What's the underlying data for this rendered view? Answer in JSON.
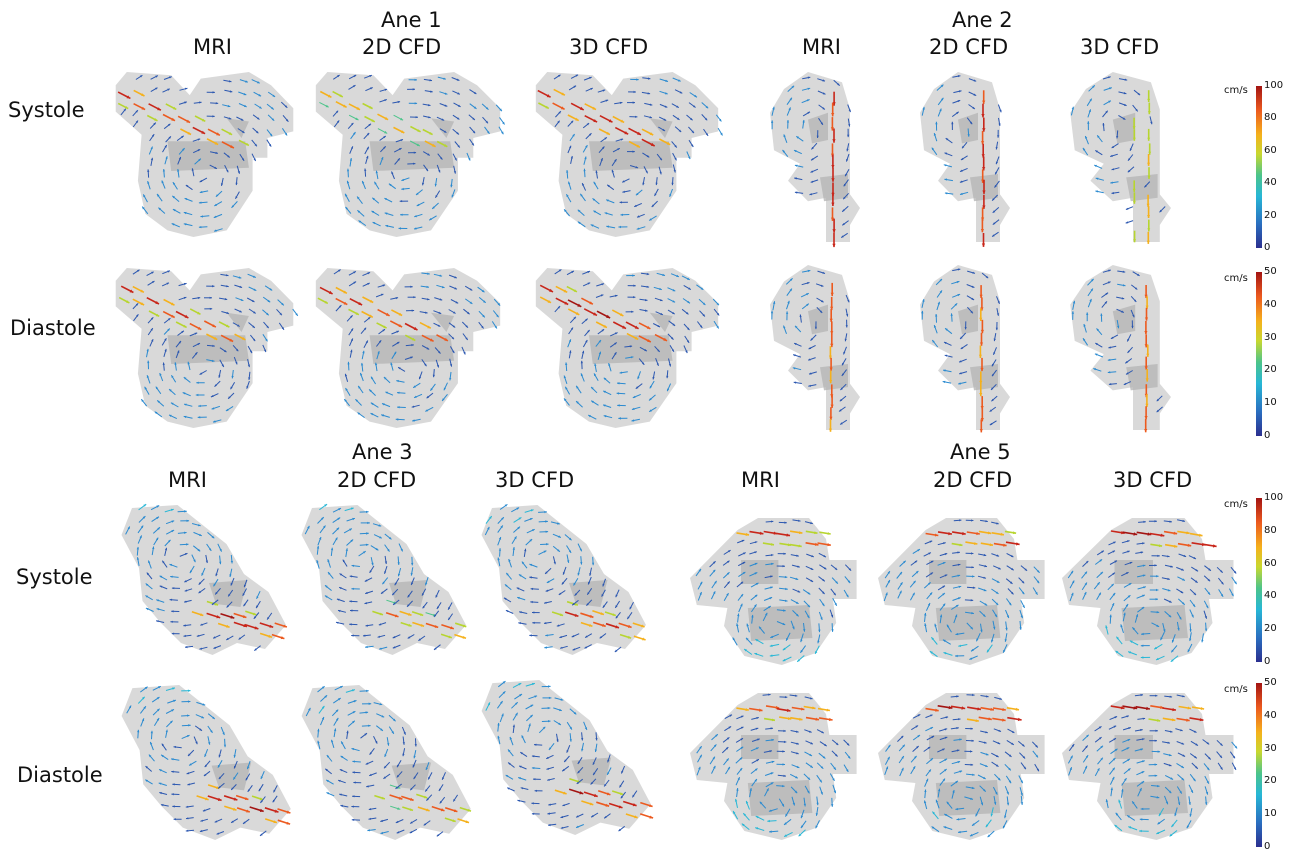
{
  "groups": {
    "ane1": {
      "title": "Ane 1",
      "mri": "MRI",
      "cfd2d": "2D CFD",
      "cfd3d": "3D CFD"
    },
    "ane2": {
      "title": "Ane 2",
      "mri": "MRI",
      "cfd2d": "2D CFD",
      "cfd3d": "3D CFD"
    },
    "ane3": {
      "title": "Ane 3",
      "mri": "MRI",
      "cfd2d": "2D CFD",
      "cfd3d": "3D CFD"
    },
    "ane5": {
      "title": "Ane 5",
      "mri": "MRI",
      "cfd2d": "2D CFD",
      "cfd3d": "3D CFD"
    }
  },
  "rows": {
    "top_systole": "Systole",
    "top_diastole": "Diastole",
    "bottom_systole": "Systole",
    "bottom_diastole": "Diastole"
  },
  "colorbars": {
    "unit": "cm/s",
    "systole_ticks": [
      "100",
      "80",
      "60",
      "40",
      "20",
      "0"
    ],
    "diastole_ticks": [
      "50",
      "40",
      "30",
      "20",
      "10",
      "0"
    ]
  },
  "colors": {
    "vessel_fill": "#d9d9d9",
    "vessel_dark": "#b3b3b3",
    "slow": "#2b2f8f",
    "fast": "#a31412"
  }
}
